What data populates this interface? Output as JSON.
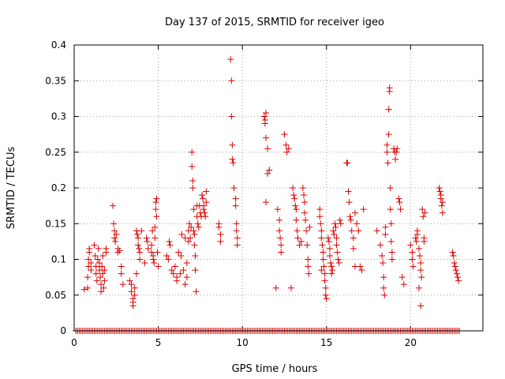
{
  "chart_data": {
    "type": "scatter",
    "title": "Day 137 of 2015, SRMTID for receiver igeo",
    "xlabel": "GPS time / hours",
    "ylabel": "SRMTID / TECUs",
    "xlim": [
      0,
      24.3
    ],
    "ylim": [
      0,
      0.4
    ],
    "x_ticks": [
      0,
      5,
      10,
      15,
      20
    ],
    "y_ticks": [
      0,
      0.05,
      0.1,
      0.15,
      0.2,
      0.25,
      0.3,
      0.35,
      0.4
    ],
    "x_tick_labels": [
      "0",
      "5",
      "10",
      "15",
      "20"
    ],
    "y_tick_labels": [
      "0",
      "0.05",
      "0.1",
      "0.15",
      "0.2",
      "0.25",
      "0.3",
      "0.35",
      "0.4"
    ],
    "grid": true,
    "marker": "plus",
    "color": "#dd0000",
    "series": [
      {
        "name": "SRMTID",
        "points": [
          [
            0.6,
            0.058
          ],
          [
            0.8,
            0.06
          ],
          [
            0.8,
            0.075
          ],
          [
            0.85,
            0.09
          ],
          [
            0.85,
            0.1
          ],
          [
            0.9,
            0.11
          ],
          [
            0.9,
            0.115
          ],
          [
            1.0,
            0.095
          ],
          [
            1.0,
            0.085
          ],
          [
            1.2,
            0.12
          ],
          [
            1.25,
            0.105
          ],
          [
            1.3,
            0.09
          ],
          [
            1.3,
            0.08
          ],
          [
            1.35,
            0.07
          ],
          [
            1.4,
            0.1
          ],
          [
            1.45,
            0.115
          ],
          [
            1.5,
            0.095
          ],
          [
            1.5,
            0.085
          ],
          [
            1.55,
            0.075
          ],
          [
            1.6,
            0.065
          ],
          [
            1.6,
            0.055
          ],
          [
            1.65,
            0.09
          ],
          [
            1.7,
            0.105
          ],
          [
            1.7,
            0.08
          ],
          [
            1.75,
            0.06
          ],
          [
            1.8,
            0.07
          ],
          [
            1.8,
            0.085
          ],
          [
            1.9,
            0.11
          ],
          [
            1.9,
            0.115
          ],
          [
            2.3,
            0.175
          ],
          [
            2.35,
            0.15
          ],
          [
            2.4,
            0.14
          ],
          [
            2.4,
            0.13
          ],
          [
            2.45,
            0.125
          ],
          [
            2.5,
            0.135
          ],
          [
            2.6,
            0.115
          ],
          [
            2.6,
            0.11
          ],
          [
            2.7,
            0.112
          ],
          [
            2.8,
            0.09
          ],
          [
            2.8,
            0.08
          ],
          [
            2.9,
            0.065
          ],
          [
            3.3,
            0.07
          ],
          [
            3.4,
            0.065
          ],
          [
            3.4,
            0.055
          ],
          [
            3.5,
            0.045
          ],
          [
            3.5,
            0.04
          ],
          [
            3.5,
            0.035
          ],
          [
            3.6,
            0.06
          ],
          [
            3.6,
            0.05
          ],
          [
            3.7,
            0.08
          ],
          [
            3.7,
            0.14
          ],
          [
            3.75,
            0.135
          ],
          [
            3.8,
            0.13
          ],
          [
            3.8,
            0.12
          ],
          [
            3.85,
            0.115
          ],
          [
            3.9,
            0.11
          ],
          [
            3.9,
            0.1
          ],
          [
            4.0,
            0.14
          ],
          [
            4.2,
            0.095
          ],
          [
            4.3,
            0.13
          ],
          [
            4.35,
            0.125
          ],
          [
            4.4,
            0.115
          ],
          [
            4.6,
            0.12
          ],
          [
            4.6,
            0.11
          ],
          [
            4.65,
            0.14
          ],
          [
            4.7,
            0.105
          ],
          [
            4.7,
            0.1
          ],
          [
            4.75,
            0.095
          ],
          [
            4.8,
            0.13
          ],
          [
            4.8,
            0.145
          ],
          [
            4.85,
            0.17
          ],
          [
            4.85,
            0.18
          ],
          [
            4.9,
            0.185
          ],
          [
            4.9,
            0.16
          ],
          [
            4.95,
            0.11
          ],
          [
            5.0,
            0.09
          ],
          [
            5.5,
            0.105
          ],
          [
            5.6,
            0.1
          ],
          [
            5.65,
            0.125
          ],
          [
            5.7,
            0.12
          ],
          [
            5.8,
            0.085
          ],
          [
            5.9,
            0.08
          ],
          [
            6.0,
            0.09
          ],
          [
            6.1,
            0.075
          ],
          [
            6.1,
            0.07
          ],
          [
            6.2,
            0.11
          ],
          [
            6.3,
            0.08
          ],
          [
            6.35,
            0.105
          ],
          [
            6.4,
            0.135
          ],
          [
            6.5,
            0.085
          ],
          [
            6.6,
            0.13
          ],
          [
            6.6,
            0.065
          ],
          [
            6.7,
            0.095
          ],
          [
            6.7,
            0.075
          ],
          [
            6.8,
            0.14
          ],
          [
            6.8,
            0.125
          ],
          [
            6.85,
            0.15
          ],
          [
            6.9,
            0.13
          ],
          [
            6.95,
            0.145
          ],
          [
            7.0,
            0.25
          ],
          [
            7.0,
            0.23
          ],
          [
            7.05,
            0.21
          ],
          [
            7.05,
            0.2
          ],
          [
            7.1,
            0.17
          ],
          [
            7.1,
            0.14
          ],
          [
            7.15,
            0.135
          ],
          [
            7.15,
            0.12
          ],
          [
            7.2,
            0.105
          ],
          [
            7.2,
            0.085
          ],
          [
            7.25,
            0.055
          ],
          [
            7.3,
            0.16
          ],
          [
            7.3,
            0.175
          ],
          [
            7.35,
            0.15
          ],
          [
            7.4,
            0.145
          ],
          [
            7.45,
            0.175
          ],
          [
            7.5,
            0.165
          ],
          [
            7.55,
            0.16
          ],
          [
            7.6,
            0.19
          ],
          [
            7.65,
            0.185
          ],
          [
            7.7,
            0.175
          ],
          [
            7.7,
            0.17
          ],
          [
            7.75,
            0.165
          ],
          [
            7.8,
            0.16
          ],
          [
            7.85,
            0.18
          ],
          [
            7.85,
            0.195
          ],
          [
            8.6,
            0.15
          ],
          [
            8.6,
            0.145
          ],
          [
            8.7,
            0.135
          ],
          [
            8.7,
            0.125
          ],
          [
            9.3,
            0.38
          ],
          [
            9.35,
            0.35
          ],
          [
            9.35,
            0.3
          ],
          [
            9.4,
            0.26
          ],
          [
            9.4,
            0.24
          ],
          [
            9.45,
            0.235
          ],
          [
            9.5,
            0.2
          ],
          [
            9.6,
            0.185
          ],
          [
            9.6,
            0.175
          ],
          [
            9.65,
            0.15
          ],
          [
            9.65,
            0.14
          ],
          [
            9.7,
            0.13
          ],
          [
            9.7,
            0.12
          ],
          [
            11.3,
            0.3
          ],
          [
            11.35,
            0.295
          ],
          [
            11.35,
            0.29
          ],
          [
            11.4,
            0.305
          ],
          [
            11.4,
            0.27
          ],
          [
            11.5,
            0.255
          ],
          [
            11.5,
            0.22
          ],
          [
            11.6,
            0.225
          ],
          [
            11.4,
            0.18
          ],
          [
            12.0,
            0.06
          ],
          [
            12.1,
            0.17
          ],
          [
            12.2,
            0.155
          ],
          [
            12.2,
            0.14
          ],
          [
            12.25,
            0.13
          ],
          [
            12.3,
            0.12
          ],
          [
            12.3,
            0.11
          ],
          [
            12.5,
            0.275
          ],
          [
            12.6,
            0.26
          ],
          [
            12.65,
            0.25
          ],
          [
            12.75,
            0.255
          ],
          [
            12.9,
            0.06
          ],
          [
            13.0,
            0.2
          ],
          [
            13.05,
            0.19
          ],
          [
            13.1,
            0.185
          ],
          [
            13.15,
            0.175
          ],
          [
            13.2,
            0.17
          ],
          [
            13.2,
            0.155
          ],
          [
            13.25,
            0.14
          ],
          [
            13.3,
            0.13
          ],
          [
            13.4,
            0.12
          ],
          [
            13.5,
            0.125
          ],
          [
            13.6,
            0.2
          ],
          [
            13.65,
            0.19
          ],
          [
            13.7,
            0.18
          ],
          [
            13.7,
            0.165
          ],
          [
            13.75,
            0.155
          ],
          [
            13.8,
            0.14
          ],
          [
            13.85,
            0.12
          ],
          [
            13.9,
            0.1
          ],
          [
            13.9,
            0.09
          ],
          [
            13.95,
            0.08
          ],
          [
            14.0,
            0.145
          ],
          [
            14.6,
            0.17
          ],
          [
            14.6,
            0.16
          ],
          [
            14.65,
            0.15
          ],
          [
            14.7,
            0.14
          ],
          [
            14.7,
            0.13
          ],
          [
            14.75,
            0.12
          ],
          [
            14.8,
            0.11
          ],
          [
            14.8,
            0.1
          ],
          [
            14.85,
            0.09
          ],
          [
            14.9,
            0.08
          ],
          [
            14.9,
            0.07
          ],
          [
            14.95,
            0.06
          ],
          [
            14.95,
            0.05
          ],
          [
            15.0,
            0.045
          ],
          [
            14.7,
            0.085
          ],
          [
            15.1,
            0.13
          ],
          [
            15.15,
            0.125
          ],
          [
            15.2,
            0.115
          ],
          [
            15.2,
            0.105
          ],
          [
            15.25,
            0.095
          ],
          [
            15.3,
            0.09
          ],
          [
            15.3,
            0.08
          ],
          [
            15.35,
            0.085
          ],
          [
            15.4,
            0.14
          ],
          [
            15.45,
            0.135
          ],
          [
            15.5,
            0.15
          ],
          [
            15.55,
            0.145
          ],
          [
            15.6,
            0.13
          ],
          [
            15.6,
            0.12
          ],
          [
            15.65,
            0.11
          ],
          [
            15.7,
            0.1
          ],
          [
            15.75,
            0.095
          ],
          [
            15.8,
            0.155
          ],
          [
            15.85,
            0.15
          ],
          [
            16.2,
            0.235
          ],
          [
            16.25,
            0.235
          ],
          [
            16.3,
            0.195
          ],
          [
            16.35,
            0.18
          ],
          [
            16.4,
            0.16
          ],
          [
            16.45,
            0.155
          ],
          [
            16.5,
            0.14
          ],
          [
            16.6,
            0.13
          ],
          [
            16.6,
            0.115
          ],
          [
            16.7,
            0.09
          ],
          [
            16.7,
            0.165
          ],
          [
            16.8,
            0.15
          ],
          [
            16.9,
            0.14
          ],
          [
            17.0,
            0.09
          ],
          [
            17.1,
            0.085
          ],
          [
            17.2,
            0.17
          ],
          [
            18.0,
            0.14
          ],
          [
            18.2,
            0.12
          ],
          [
            18.3,
            0.105
          ],
          [
            18.35,
            0.095
          ],
          [
            18.4,
            0.075
          ],
          [
            18.4,
            0.06
          ],
          [
            18.45,
            0.05
          ],
          [
            18.5,
            0.145
          ],
          [
            18.5,
            0.135
          ],
          [
            18.6,
            0.26
          ],
          [
            18.6,
            0.25
          ],
          [
            18.65,
            0.235
          ],
          [
            18.7,
            0.31
          ],
          [
            18.7,
            0.275
          ],
          [
            18.75,
            0.34
          ],
          [
            18.75,
            0.335
          ],
          [
            18.8,
            0.2
          ],
          [
            18.8,
            0.17
          ],
          [
            18.85,
            0.15
          ],
          [
            18.85,
            0.125
          ],
          [
            18.9,
            0.11
          ],
          [
            18.9,
            0.1
          ],
          [
            19.0,
            0.255
          ],
          [
            19.05,
            0.25
          ],
          [
            19.1,
            0.24
          ],
          [
            19.15,
            0.25
          ],
          [
            19.2,
            0.255
          ],
          [
            19.3,
            0.185
          ],
          [
            19.35,
            0.18
          ],
          [
            19.4,
            0.17
          ],
          [
            19.5,
            0.075
          ],
          [
            19.6,
            0.065
          ],
          [
            20.0,
            0.12
          ],
          [
            20.1,
            0.11
          ],
          [
            20.1,
            0.1
          ],
          [
            20.15,
            0.09
          ],
          [
            20.3,
            0.13
          ],
          [
            20.35,
            0.125
          ],
          [
            20.4,
            0.14
          ],
          [
            20.4,
            0.135
          ],
          [
            20.5,
            0.115
          ],
          [
            20.55,
            0.105
          ],
          [
            20.6,
            0.095
          ],
          [
            20.6,
            0.085
          ],
          [
            20.65,
            0.075
          ],
          [
            20.5,
            0.06
          ],
          [
            20.6,
            0.035
          ],
          [
            20.7,
            0.17
          ],
          [
            20.75,
            0.16
          ],
          [
            20.8,
            0.13
          ],
          [
            20.8,
            0.125
          ],
          [
            20.85,
            0.165
          ],
          [
            21.7,
            0.2
          ],
          [
            21.75,
            0.195
          ],
          [
            21.8,
            0.19
          ],
          [
            21.8,
            0.185
          ],
          [
            21.85,
            0.175
          ],
          [
            21.9,
            0.18
          ],
          [
            21.9,
            0.165
          ],
          [
            22.5,
            0.11
          ],
          [
            22.55,
            0.105
          ],
          [
            22.6,
            0.095
          ],
          [
            22.65,
            0.09
          ],
          [
            22.7,
            0.085
          ],
          [
            22.75,
            0.08
          ],
          [
            22.8,
            0.075
          ],
          [
            22.85,
            0.07
          ]
        ]
      },
      {
        "name": "baseline zeros",
        "x_from": 0.1,
        "x_to": 22.9,
        "x_step": 0.1,
        "y": 0
      }
    ]
  }
}
